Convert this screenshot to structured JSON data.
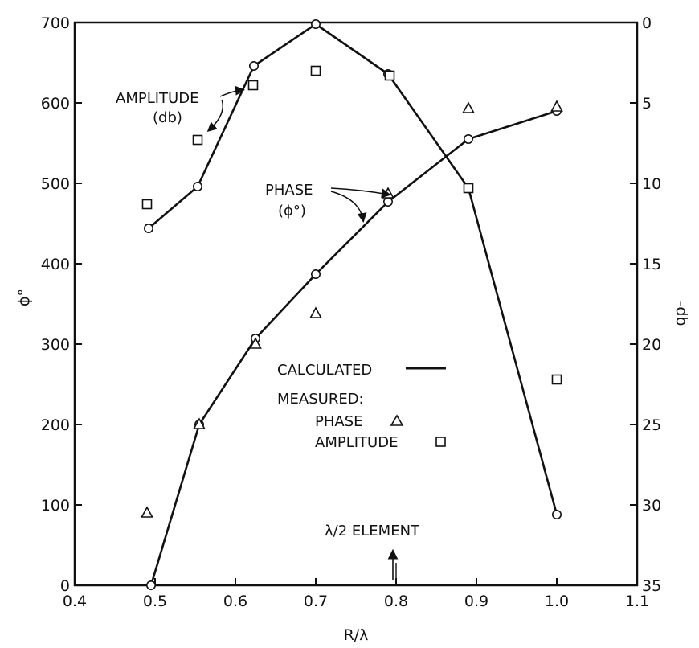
{
  "chart_data": {
    "type": "line",
    "x_axis": {
      "label": "R/λ",
      "range": [
        0.4,
        1.1
      ],
      "ticks": [
        0.4,
        0.5,
        0.6,
        0.7,
        0.8,
        0.9,
        1.0,
        1.1
      ],
      "tick_labels": [
        "0.4",
        "0.5",
        "0.6",
        "0.7",
        "0.8",
        "0.9",
        "1.0",
        "1.1"
      ]
    },
    "y_left": {
      "label": "ϕ°",
      "range": [
        0,
        700
      ],
      "ticks": [
        0,
        100,
        200,
        300,
        400,
        500,
        600,
        700
      ],
      "tick_labels": [
        "0",
        "100",
        "200",
        "300",
        "400",
        "500",
        "600",
        "700"
      ]
    },
    "y_right": {
      "label": "-db",
      "range": [
        0,
        35
      ],
      "inverted": true,
      "ticks": [
        0,
        5,
        10,
        15,
        20,
        25,
        30,
        35
      ],
      "tick_labels": [
        "0",
        "5",
        "10",
        "15",
        "20",
        "25",
        "30",
        "35"
      ]
    },
    "grid": false,
    "series": [
      {
        "key": "phase_calculated",
        "axis": "left",
        "style": "line+circle",
        "x": [
          0.495,
          0.555,
          0.625,
          0.7,
          0.79,
          0.89,
          1.0
        ],
        "y": [
          0,
          200,
          307,
          387,
          477,
          555,
          590
        ]
      },
      {
        "key": "amplitude_calculated",
        "axis": "right",
        "style": "line+circle",
        "x": [
          0.492,
          0.553,
          0.623,
          0.7,
          0.79,
          0.89,
          1.0
        ],
        "y": [
          12.8,
          10.2,
          2.7,
          0.1,
          3.2,
          10.3,
          30.6
        ]
      },
      {
        "key": "phase_measured",
        "axis": "left",
        "style": "triangle",
        "x": [
          0.49,
          0.555,
          0.625,
          0.7,
          0.79,
          0.89,
          1.0
        ],
        "y": [
          90,
          200,
          300,
          338,
          487,
          593,
          595
        ]
      },
      {
        "key": "amplitude_measured",
        "axis": "right",
        "style": "square",
        "x": [
          0.49,
          0.553,
          0.622,
          0.7,
          0.792,
          0.89,
          1.0
        ],
        "y": [
          11.3,
          7.3,
          3.9,
          3.0,
          3.3,
          10.3,
          22.2
        ]
      }
    ],
    "annotations": {
      "amplitude_line1": "AMPLITUDE",
      "amplitude_line2": "(db)",
      "phase_line1": "PHASE",
      "phase_line2": "(ϕ°)",
      "legend_calculated": "CALCULATED",
      "legend_measured": "MEASURED:",
      "legend_phase": "PHASE",
      "legend_amplitude": "AMPLITUDE",
      "element": "λ/2 ELEMENT"
    }
  }
}
